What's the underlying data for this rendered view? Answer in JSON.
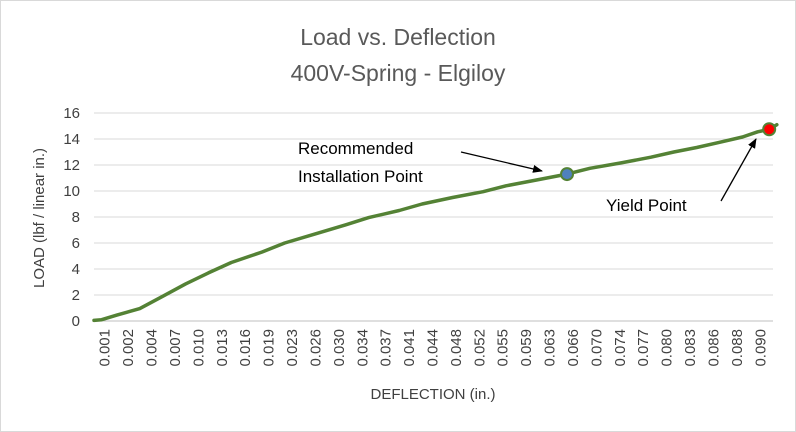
{
  "chart_data": {
    "type": "line",
    "title": "Load vs. Deflection",
    "subtitle": "400V-Spring - Elgiloy",
    "xlabel": "DEFLECTION (in.)",
    "ylabel": "LOAD (lbf / linear in.)",
    "x_tick_labels": [
      "0.001",
      "0.002",
      "0.004",
      "0.007",
      "0.010",
      "0.013",
      "0.016",
      "0.019",
      "0.023",
      "0.026",
      "0.030",
      "0.034",
      "0.037",
      "0.041",
      "0.044",
      "0.048",
      "0.052",
      "0.055",
      "0.059",
      "0.063",
      "0.066",
      "0.070",
      "0.074",
      "0.077",
      "0.080",
      "0.083",
      "0.086",
      "0.088",
      "0.090"
    ],
    "y_ticks": [
      0,
      2,
      4,
      6,
      8,
      10,
      12,
      14,
      16
    ],
    "ylim": [
      0,
      16
    ],
    "xlim": [
      0.001,
      0.09
    ],
    "grid": "horizontal",
    "legend": "none",
    "series": [
      {
        "color": "#548235",
        "x": [
          0.001,
          0.002,
          0.004,
          0.007,
          0.01,
          0.013,
          0.016,
          0.019,
          0.023,
          0.026,
          0.03,
          0.034,
          0.037,
          0.041,
          0.044,
          0.048,
          0.052,
          0.055,
          0.059,
          0.063,
          0.066,
          0.07,
          0.074,
          0.077,
          0.08,
          0.083,
          0.086,
          0.088,
          0.0895,
          0.0905
        ],
        "y": [
          0.05,
          0.1,
          0.45,
          0.95,
          1.9,
          2.85,
          3.7,
          4.5,
          5.3,
          6.0,
          6.7,
          7.4,
          7.95,
          8.5,
          9.0,
          9.5,
          9.95,
          10.4,
          10.85,
          11.3,
          11.75,
          12.15,
          12.6,
          13.0,
          13.35,
          13.75,
          14.15,
          14.55,
          14.75,
          15.1
        ]
      }
    ],
    "points": [
      {
        "name": "Recommended Installation Point",
        "x": 0.063,
        "y": 11.3,
        "color": "#4f81bd"
      },
      {
        "name": "Yield Point",
        "x": 0.0895,
        "y": 14.75,
        "color": "#ff0000"
      }
    ],
    "annotations": [
      {
        "line1": "Recommended",
        "line2": "Installation Point"
      },
      {
        "line1": "Yield Point"
      }
    ]
  }
}
